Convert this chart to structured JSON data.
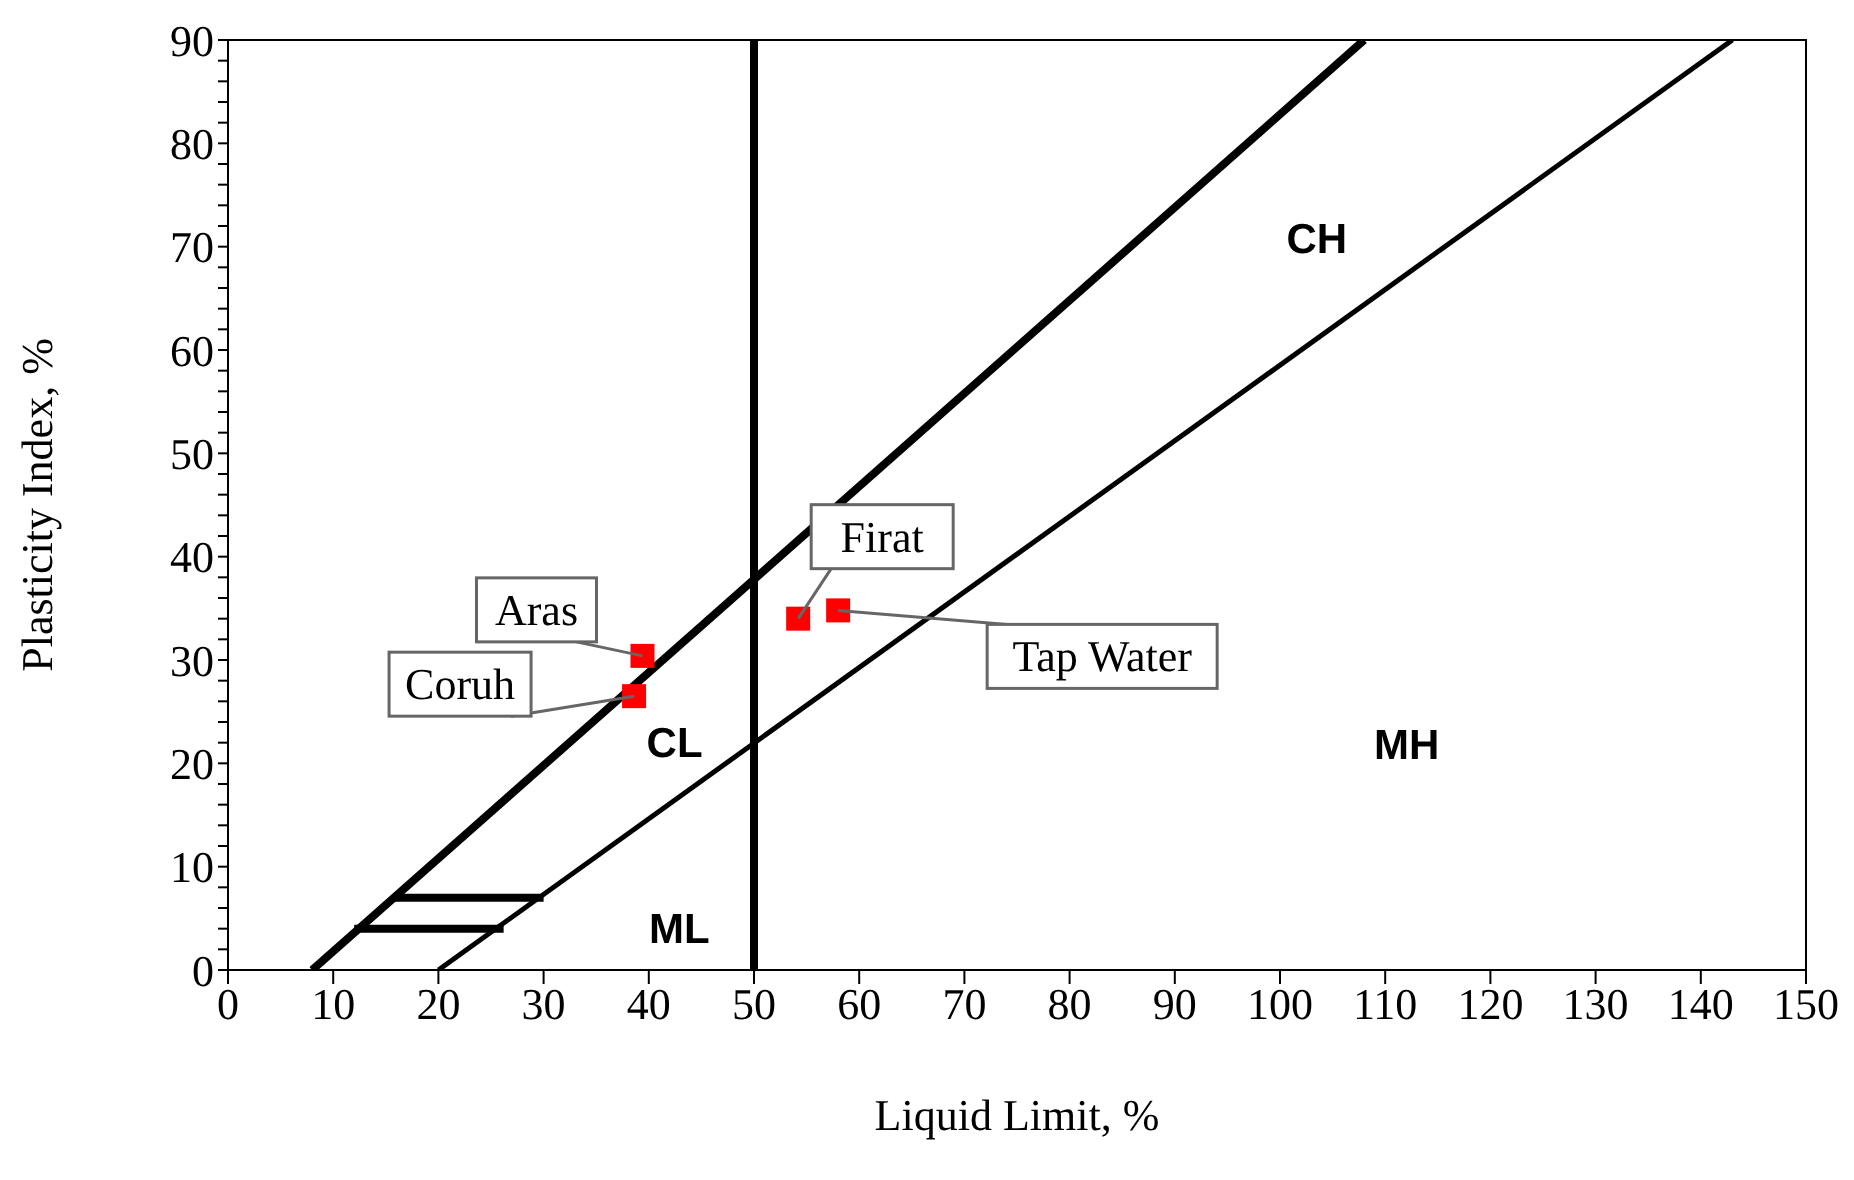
{
  "chart_data": {
    "type": "scatter",
    "xlabel": "Liquid Limit, %",
    "ylabel": "Plasticity Index, %",
    "xlim": [
      0,
      150
    ],
    "xticks": [
      0,
      10,
      20,
      30,
      40,
      50,
      60,
      70,
      80,
      90,
      100,
      110,
      120,
      130,
      140,
      150
    ],
    "ylim": [
      0,
      90
    ],
    "yticks": [
      0,
      {
        "value": 2,
        "label": null
      },
      {
        "value": 4,
        "label": null
      },
      {
        "value": 6,
        "label": null
      },
      {
        "value": 8,
        "label": null
      },
      10,
      {
        "value": 12,
        "label": null
      },
      {
        "value": 14,
        "label": null
      },
      {
        "value": 16,
        "label": null
      },
      {
        "value": 18,
        "label": null
      },
      20,
      {
        "value": 22,
        "label": null
      },
      {
        "value": 24,
        "label": null
      },
      {
        "value": 26,
        "label": null
      },
      {
        "value": 28,
        "label": null
      },
      30,
      {
        "value": 32,
        "label": null
      },
      {
        "value": 34,
        "label": null
      },
      {
        "value": 36,
        "label": null
      },
      {
        "value": 38,
        "label": null
      },
      40,
      {
        "value": 42,
        "label": null
      },
      {
        "value": 44,
        "label": null
      },
      {
        "value": 46,
        "label": null
      },
      {
        "value": 48,
        "label": null
      },
      50,
      {
        "value": 52,
        "label": null
      },
      {
        "value": 54,
        "label": null
      },
      {
        "value": 56,
        "label": null
      },
      {
        "value": 58,
        "label": null
      },
      60,
      {
        "value": 62,
        "label": null
      },
      {
        "value": 64,
        "label": null
      },
      {
        "value": 66,
        "label": null
      },
      {
        "value": 68,
        "label": null
      },
      70,
      {
        "value": 72,
        "label": null
      },
      {
        "value": 74,
        "label": null
      },
      {
        "value": 76,
        "label": null
      },
      {
        "value": 78,
        "label": null
      },
      80,
      {
        "value": 82,
        "label": null
      },
      {
        "value": 84,
        "label": null
      },
      {
        "value": 86,
        "label": null
      },
      {
        "value": 88,
        "label": null
      },
      90
    ],
    "marker": "square",
    "series": [
      {
        "color": "#ff0000",
        "x": [
          39.4,
          38.6,
          54.2,
          58.0
        ],
        "values": [
          30.4,
          26.5,
          34.0,
          34.8
        ]
      },
      {
        "type": "line",
        "color": "#000000",
        "x": [
          8,
          108
        ],
        "values": [
          0,
          90
        ],
        "line_style": "solid",
        "marker": "none"
      },
      {
        "type": "line",
        "color": "#000000",
        "x": [
          20,
          143
        ],
        "values": [
          0,
          90
        ],
        "line_style": "solid",
        "marker": "none"
      },
      {
        "type": "line",
        "color": "#000000",
        "x": [
          12,
          26.2
        ],
        "values": [
          4,
          4
        ],
        "line_style": "solid",
        "marker": "none"
      },
      {
        "type": "line",
        "color": "#000000",
        "x": [
          15.8,
          30
        ],
        "values": [
          7,
          7
        ],
        "line_style": "solid",
        "marker": "none"
      }
    ],
    "ref_lines": [
      {
        "axis": "x",
        "value": 50,
        "color": "#000000"
      }
    ],
    "annotations": [
      {
        "text": "Aras",
        "x": 39.4,
        "y": 30.4
      },
      {
        "text": "Coruh",
        "x": 38.6,
        "y": 26.5
      },
      {
        "text": "Firat",
        "x": 54.2,
        "y": 34.0
      },
      {
        "text": "Tap Water",
        "x": 58.0,
        "y": 34.8
      },
      "CH",
      "CL",
      "MH",
      "ML"
    ]
  }
}
